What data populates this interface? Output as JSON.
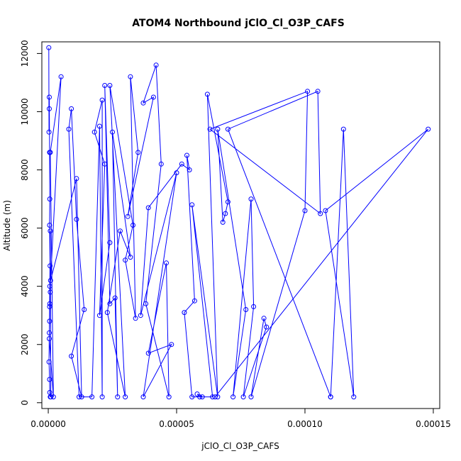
{
  "chart_data": {
    "type": "line",
    "title": "ATOM4 Northbound jClO_Cl_O3P_CAFS",
    "xlabel": "jClO_Cl_O3P_CAFS",
    "ylabel": "Altitude (m)",
    "xlim": [
      -2.5e-06,
      0.0001525
    ],
    "ylim": [
      -200,
      12400
    ],
    "x_ticks": [
      0,
      5e-05,
      0.0001,
      0.00015
    ],
    "x_tick_labels": [
      "0.00000",
      "0.00005",
      "0.00010",
      "0.00015"
    ],
    "y_ticks": [
      0,
      2000,
      4000,
      6000,
      8000,
      10000,
      12000
    ],
    "y_tick_labels": [
      "0",
      "2000",
      "4000",
      "6000",
      "8000",
      "10000",
      "12000"
    ],
    "grid": false,
    "legend": "none",
    "series": [
      {
        "color": "#0000ff",
        "marker": "open-circle",
        "x": [
          2e-07,
          3e-07,
          4e-07,
          4e-07,
          5e-07,
          6e-07,
          5e-07,
          7e-07,
          8e-07,
          6e-07,
          5e-07,
          4e-07,
          3e-07,
          5e-07,
          6e-07,
          8e-07,
          1e-06,
          8e-07,
          6e-07,
          5e-07,
          4e-07,
          2e-06,
          8e-07,
          5e-06,
          9e-07,
          1.1e-05,
          1.3e-05,
          9e-06,
          1.4e-05,
          1.1e-05,
          9e-06,
          8e-06,
          1.2e-05,
          1.7e-05,
          2e-05,
          2.1e-05,
          2.1e-05,
          1.8e-05,
          2.2e-05,
          2e-05,
          2.4e-05,
          2.2e-05,
          2.4e-05,
          2.6e-05,
          2.7e-05,
          2.5e-05,
          3.2e-05,
          2.8e-05,
          2.3e-05,
          3e-05,
          2.4e-05,
          3.3e-05,
          3e-05,
          3.4e-05,
          3.2e-05,
          3.5e-05,
          3.1e-05,
          4.1e-05,
          3.7e-05,
          4.2e-05,
          4.4e-05,
          3.8e-05,
          4.7e-05,
          4.6e-05,
          3.9e-05,
          4.8e-05,
          3.7e-05,
          5e-05,
          3.6e-05,
          3.9e-05,
          5.2e-05,
          5.5e-05,
          5.4e-05,
          5.7e-05,
          5.3e-05,
          5.6e-05,
          6e-05,
          5.8e-05,
          5.9e-05,
          6.4e-05,
          5.6e-05,
          6.6e-05,
          6.2e-05,
          7e-05,
          6.9e-05,
          6.8e-05,
          6.6e-05,
          7.7e-05,
          7.2e-05,
          7.9e-05,
          8e-05,
          7.6e-05,
          8.5e-05,
          8.4e-05,
          7.9e-05,
          0.0001,
          0.000101,
          6.3e-05,
          0.000106,
          0.000105,
          7e-05,
          0.00011,
          0.00011,
          0.000115,
          0.000119,
          0.000108,
          0.000148,
          6.5e-05
        ],
        "y": [
          12200,
          9300,
          10100,
          10500,
          8600,
          7000,
          6100,
          4700,
          3800,
          3400,
          2800,
          2400,
          1400,
          800,
          350,
          200,
          200,
          5900,
          4000,
          3300,
          2200,
          200,
          8600,
          11200,
          4200,
          7700,
          200,
          1600,
          3200,
          6300,
          10100,
          9400,
          200,
          200,
          9500,
          200,
          10400,
          9300,
          8200,
          3000,
          5500,
          10900,
          3400,
          3600,
          200,
          9300,
          5000,
          5900,
          3100,
          200,
          10900,
          6100,
          4900,
          2900,
          11200,
          8600,
          6400,
          10500,
          10300,
          11600,
          8200,
          3400,
          200,
          4800,
          1700,
          2000,
          200,
          7900,
          3000,
          6700,
          8200,
          8000,
          8500,
          3500,
          3100,
          200,
          200,
          300,
          200,
          200,
          6800,
          200,
          10600,
          6900,
          6500,
          6200,
          9400,
          3200,
          200,
          7000,
          3300,
          200,
          2600,
          2900,
          200,
          6600,
          10700,
          9400,
          6500,
          10700,
          9400,
          200,
          200,
          9400,
          200,
          6600,
          9400,
          200
        ]
      }
    ]
  }
}
